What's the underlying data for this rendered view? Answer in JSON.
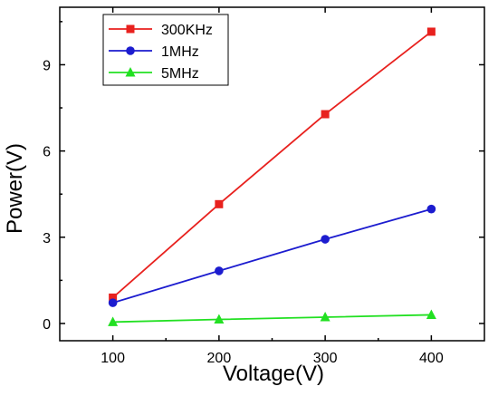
{
  "chart_data": {
    "type": "line",
    "xlabel": "Voltage(V)",
    "ylabel": "Power(V)",
    "x": [
      100,
      200,
      300,
      400
    ],
    "xlim": [
      50,
      450
    ],
    "ylim": [
      -0.6,
      11
    ],
    "xticks": [
      100,
      200,
      300,
      400
    ],
    "yticks": [
      0,
      3,
      6,
      9
    ],
    "grid": false,
    "legend_position": "top-left",
    "series": [
      {
        "name": "300KHz",
        "values": [
          0.9,
          4.15,
          7.28,
          10.15
        ],
        "color": "#e8211e",
        "marker": "square"
      },
      {
        "name": "1MHz",
        "values": [
          0.72,
          1.83,
          2.93,
          3.98
        ],
        "color": "#1c1ccf",
        "marker": "circle"
      },
      {
        "name": "5MHz",
        "values": [
          0.05,
          0.14,
          0.22,
          0.3
        ],
        "color": "#22e022",
        "marker": "triangle"
      }
    ]
  }
}
